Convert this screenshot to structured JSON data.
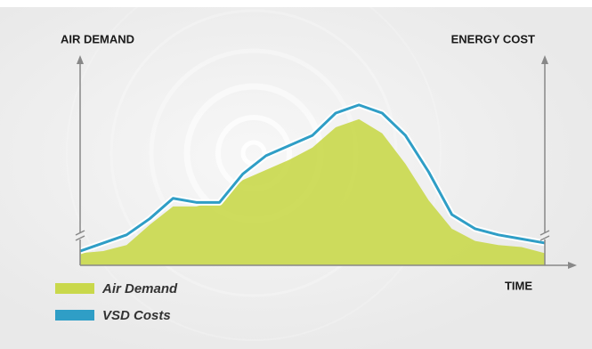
{
  "chart_data": {
    "type": "area-line",
    "y_label": "AIR DEMAND",
    "y2_label": "ENERGY COST",
    "x_label": "TIME",
    "x": [
      0,
      5,
      10,
      15,
      20,
      25,
      30,
      35,
      40,
      45,
      50,
      55,
      60,
      65,
      70,
      75,
      80,
      85,
      90,
      95,
      100
    ],
    "xlim": [
      0,
      100
    ],
    "ylim": [
      0,
      100
    ],
    "legend": "bottom-left",
    "series": [
      {
        "name": "Air Demand",
        "color": "#c9d84b",
        "kind": "area",
        "values": [
          6,
          7,
          10,
          20,
          29,
          29,
          32,
          42,
          47,
          52,
          58,
          68,
          72,
          65,
          50,
          32,
          18,
          12,
          10,
          9,
          6
        ]
      },
      {
        "name": "VSD Costs",
        "color": "#2f9ec6",
        "kind": "line",
        "values": [
          7,
          11,
          15,
          23,
          33,
          31,
          31,
          45,
          54,
          59,
          64,
          75,
          79,
          75,
          64,
          46,
          25,
          18,
          15,
          13,
          11
        ]
      }
    ]
  }
}
